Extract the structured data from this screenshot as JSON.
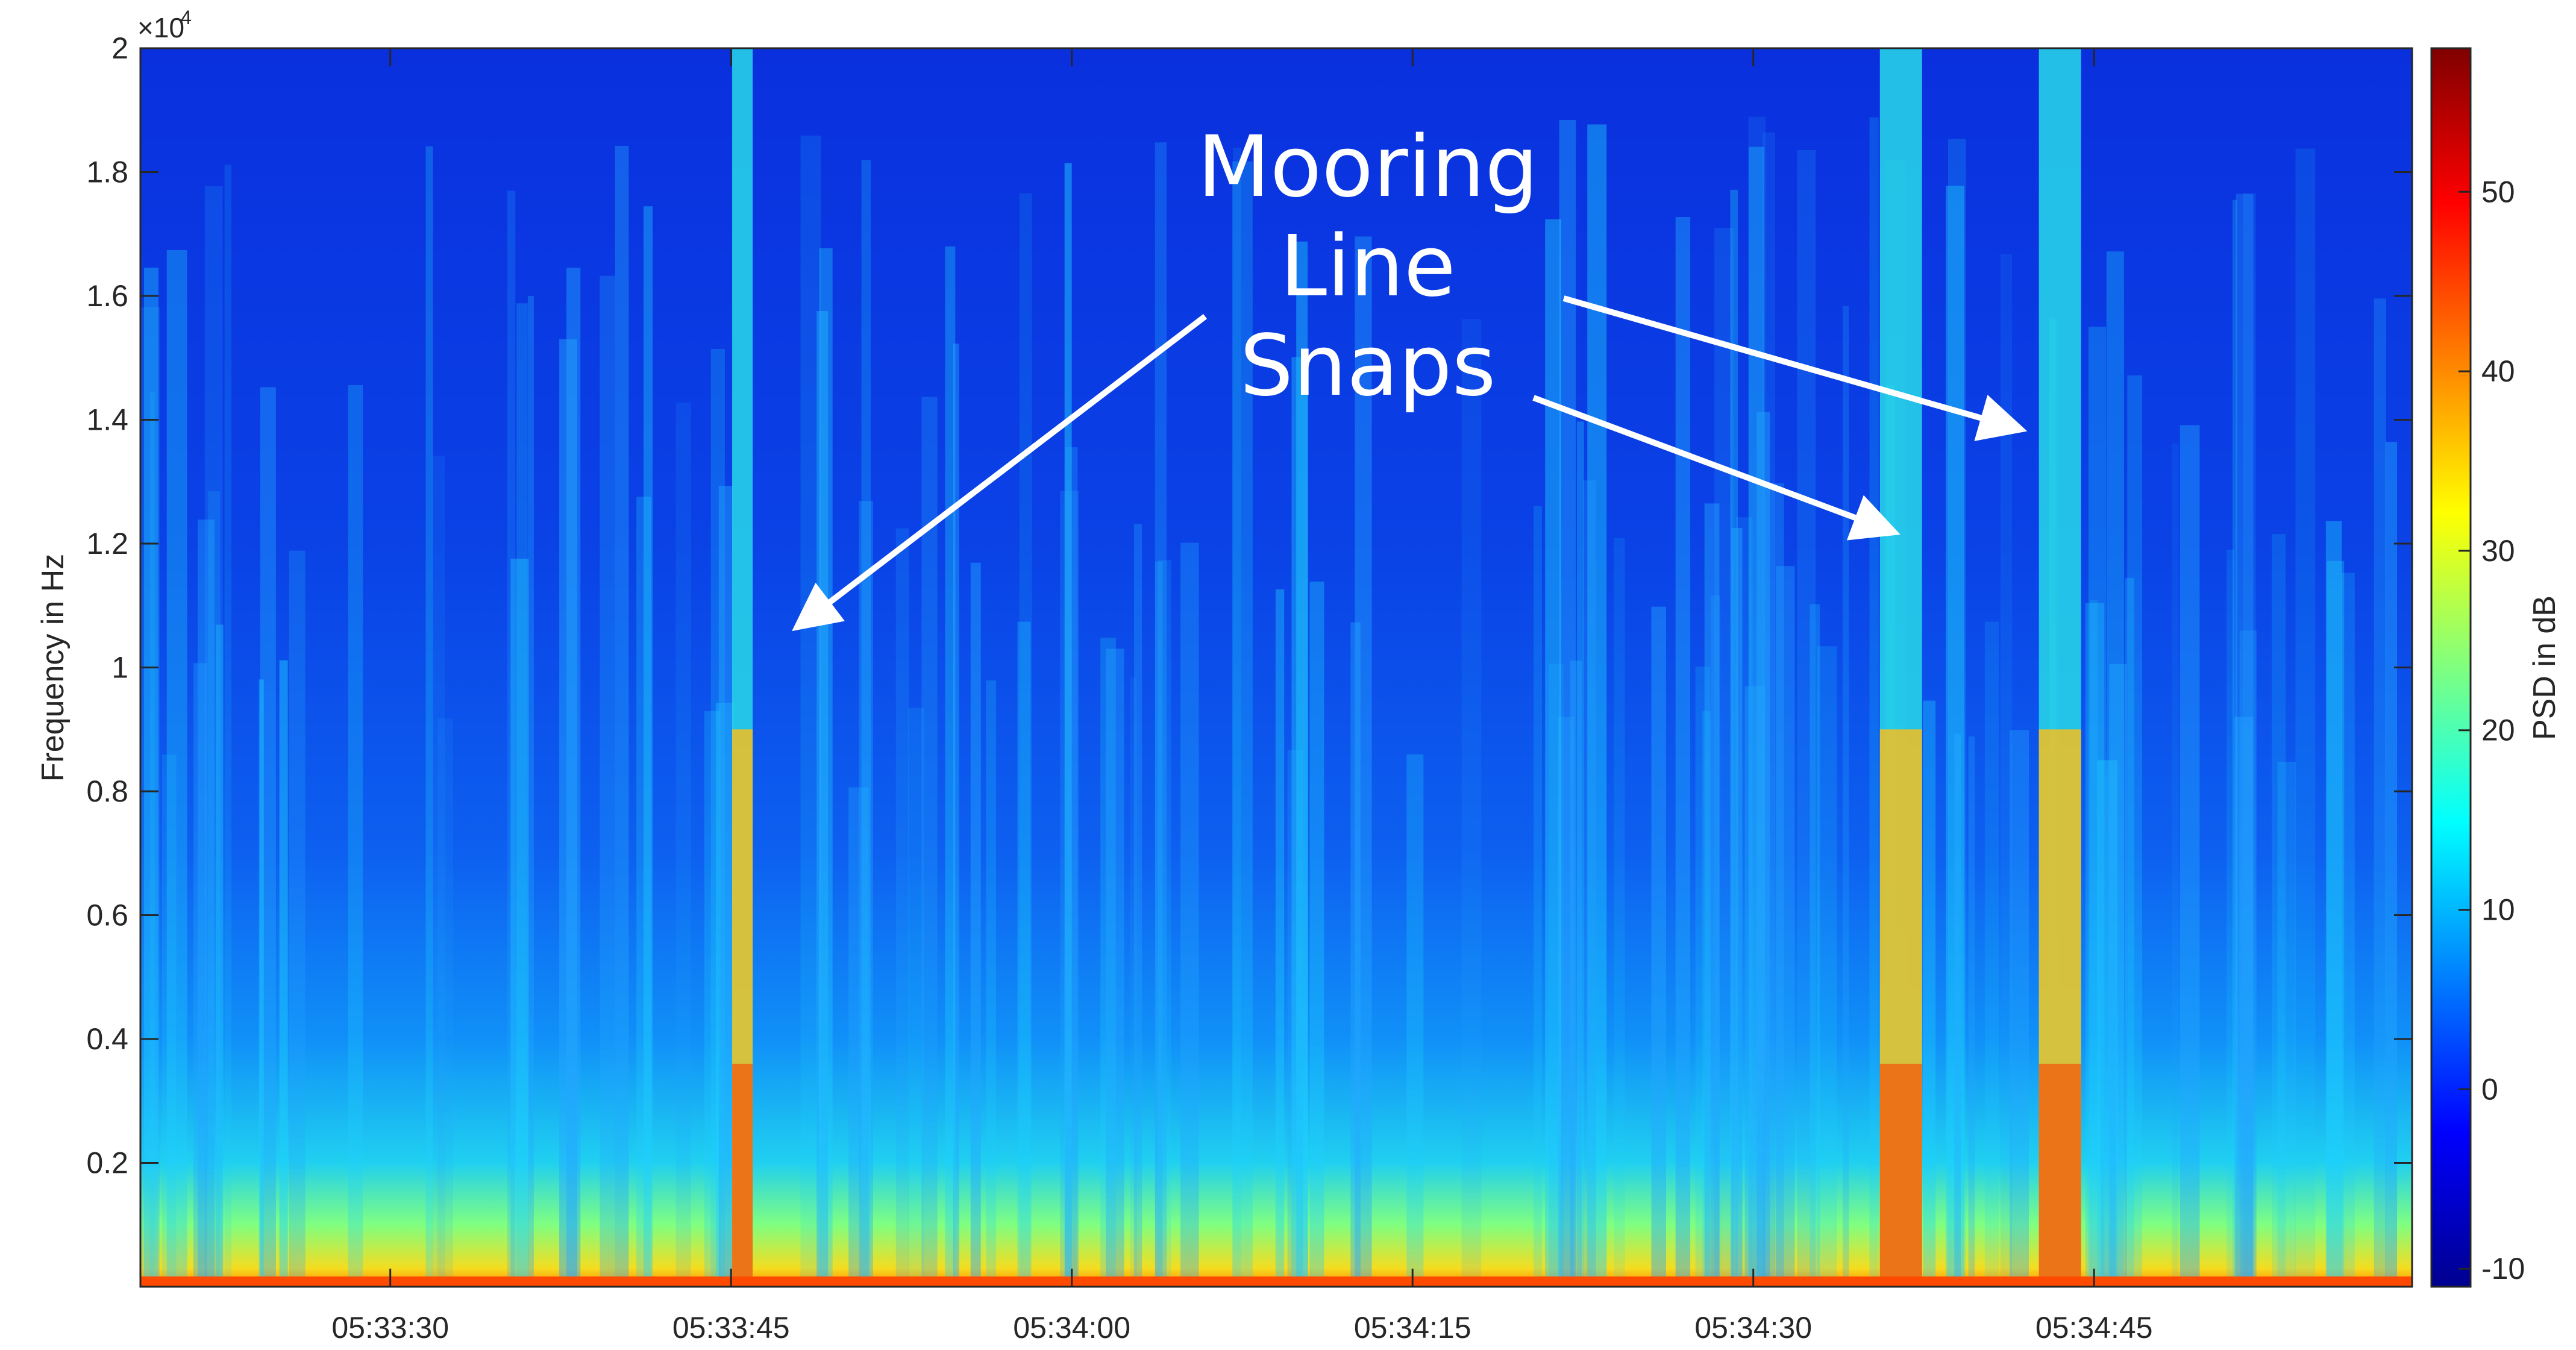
{
  "chart_data": {
    "type": "heatmap",
    "title": "",
    "xlabel": "",
    "ylabel": "Frequency in Hz",
    "colorbar_label": "PSD in dB",
    "y_exponent_base": "×10",
    "y_exponent_power": "4",
    "x_range_seconds": [
      "05:33:19",
      "05:34:59"
    ],
    "x_ticks": [
      "05:33:30",
      "05:33:45",
      "05:34:00",
      "05:34:15",
      "05:34:30",
      "05:34:45"
    ],
    "y_ticks": [
      "0.2",
      "0.4",
      "0.6",
      "0.8",
      "1",
      "1.2",
      "1.4",
      "1.6",
      "1.8",
      "2"
    ],
    "y_range": [
      0,
      20000
    ],
    "colorbar_ticks": [
      "-10",
      "0",
      "10",
      "20",
      "30",
      "40",
      "50"
    ],
    "colorbar_range": [
      -11,
      58
    ],
    "colormap": "jet",
    "annotation": {
      "lines": [
        "Mooring",
        "Line",
        "Snaps"
      ],
      "color": "#ffffff",
      "arrow_targets": [
        {
          "time": "05:33:46",
          "frequency": 10800
        },
        {
          "time": "05:34:37",
          "frequency": 12200
        },
        {
          "time": "05:34:43",
          "frequency": 13900
        }
      ]
    },
    "events": [
      {
        "time": "05:33:45.5",
        "intensity": 1.0
      },
      {
        "time": "05:34:36.5",
        "intensity": 1.0
      },
      {
        "time": "05:34:43.5",
        "intensity": 1.0
      }
    ],
    "background_color": "#0a32e0"
  }
}
